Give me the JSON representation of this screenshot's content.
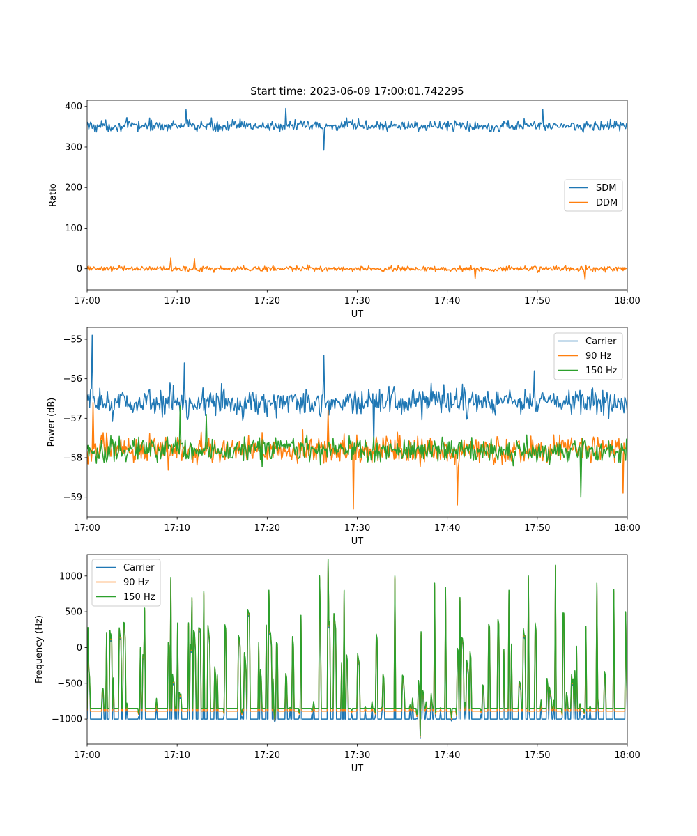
{
  "figure": {
    "title": "Start time: 2023-06-09 17:00:01.742295"
  },
  "colors": {
    "c0": "#1f77b4",
    "c1": "#ff7f0e",
    "c2": "#2ca02c"
  },
  "chart_data": [
    {
      "type": "line",
      "xlabel": "UT",
      "ylabel": "Ratio",
      "xticks": [
        "17:00",
        "17:10",
        "17:20",
        "17:30",
        "17:40",
        "17:50",
        "18:00"
      ],
      "xlim_minutes": [
        0,
        60
      ],
      "ylim": [
        -52,
        415
      ],
      "yticks": [
        0,
        100,
        200,
        300,
        400
      ],
      "ytick_labels": [
        "0",
        "100",
        "200",
        "300",
        "400"
      ],
      "legend_position": "center-right",
      "series": [
        {
          "name": "SDM",
          "color": "#1f77b4",
          "mean": 352,
          "amplitude": 18,
          "spikes": [
            [
              11.0,
              392
            ],
            [
              22.1,
              395
            ],
            [
              26.3,
              292
            ],
            [
              50.6,
              393
            ]
          ]
        },
        {
          "name": "DDM",
          "color": "#ff7f0e",
          "mean": 0,
          "amplitude": 9,
          "spikes": [
            [
              9.3,
              27
            ],
            [
              11.9,
              24
            ],
            [
              43.1,
              -25
            ],
            [
              55.3,
              -27
            ]
          ]
        }
      ]
    },
    {
      "type": "line",
      "xlabel": "UT",
      "ylabel": "Power (dB)",
      "xticks": [
        "17:00",
        "17:10",
        "17:20",
        "17:30",
        "17:40",
        "17:50",
        "18:00"
      ],
      "xlim_minutes": [
        0,
        60
      ],
      "ylim": [
        -59.5,
        -54.7
      ],
      "yticks": [
        -55,
        -56,
        -57,
        -58,
        -59
      ],
      "ytick_labels": [
        "−55",
        "−56",
        "−57",
        "−58",
        "−59"
      ],
      "legend_position": "top-right",
      "series": [
        {
          "name": "Carrier",
          "color": "#1f77b4",
          "mean": -56.6,
          "amplitude": 0.45,
          "spikes": [
            [
              0.6,
              -54.9
            ],
            [
              10.8,
              -55.6
            ],
            [
              26.3,
              -55.4
            ],
            [
              31.8,
              -57.7
            ],
            [
              49.7,
              -55.8
            ]
          ]
        },
        {
          "name": "90 Hz",
          "color": "#ff7f0e",
          "mean": -57.8,
          "amplitude": 0.45,
          "spikes": [
            [
              0.7,
              -56.6
            ],
            [
              26.8,
              -56.8
            ],
            [
              29.6,
              -59.3
            ],
            [
              41.1,
              -59.2
            ],
            [
              59.5,
              -58.9
            ]
          ]
        },
        {
          "name": "150 Hz",
          "color": "#2ca02c",
          "mean": -57.8,
          "amplitude": 0.4,
          "spikes": [
            [
              10.3,
              -56.7
            ],
            [
              13.2,
              -56.9
            ],
            [
              54.8,
              -59.0
            ]
          ]
        }
      ]
    },
    {
      "type": "line",
      "xlabel": "UT",
      "ylabel": "Frequency (Hz)",
      "xticks": [
        "17:00",
        "17:10",
        "17:20",
        "17:30",
        "17:40",
        "17:50",
        "18:00"
      ],
      "xlim_minutes": [
        0,
        60
      ],
      "ylim": [
        -1350,
        1300
      ],
      "yticks": [
        1000,
        500,
        0,
        -500,
        -1000
      ],
      "ytick_labels": [
        "1000",
        "500",
        "0",
        "−500",
        "−1000"
      ],
      "legend_position": "top-left",
      "series": [
        {
          "name": "Carrier",
          "color": "#1f77b4",
          "baseline": -1000
        },
        {
          "name": "90 Hz",
          "color": "#ff7f0e",
          "baseline": -890
        },
        {
          "name": "150 Hz",
          "color": "#2ca02c",
          "baseline": -850
        }
      ],
      "peaks": [
        [
          0.1,
          280
        ],
        [
          2.2,
          210
        ],
        [
          4.0,
          350
        ],
        [
          6.4,
          550
        ],
        [
          9.3,
          980
        ],
        [
          11.6,
          700
        ],
        [
          13.0,
          780
        ],
        [
          20.2,
          800
        ],
        [
          23.8,
          450
        ],
        [
          25.8,
          1000
        ],
        [
          26.8,
          1230
        ],
        [
          28.5,
          800
        ],
        [
          34.2,
          1000
        ],
        [
          38.6,
          900
        ],
        [
          39.8,
          840
        ],
        [
          41.4,
          700
        ],
        [
          46.9,
          800
        ],
        [
          49.0,
          1000
        ],
        [
          52.0,
          1150
        ],
        [
          56.6,
          900
        ],
        [
          58.5,
          810
        ],
        [
          59.8,
          500
        ]
      ],
      "dips": [
        [
          37.0,
          -1230
        ]
      ]
    }
  ]
}
